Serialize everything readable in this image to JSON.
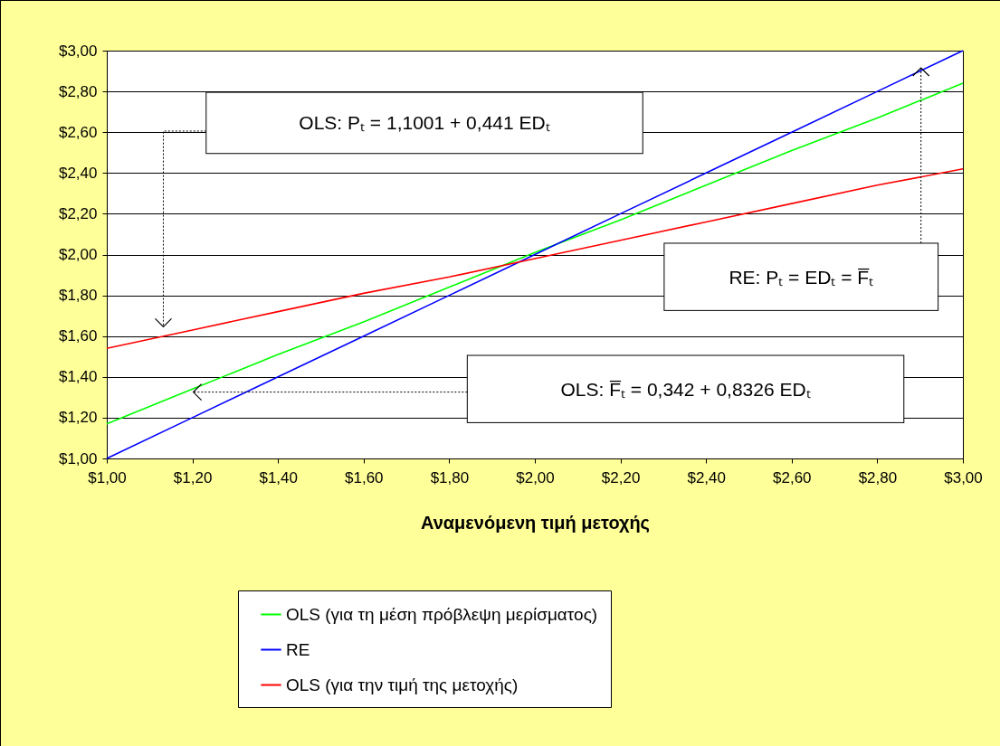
{
  "chart_data": {
    "type": "line",
    "xlabel": "Αναμενόμενη τιμή μετοχής",
    "x": [
      1.0,
      1.2,
      1.4,
      1.6,
      1.8,
      2.0,
      2.2,
      2.4,
      2.6,
      2.8,
      3.0
    ],
    "series": [
      {
        "name": "OLS (για τη μέση πρόβλεψη μερίσματος)",
        "color": "#00ff00",
        "values": [
          1.17,
          1.34,
          1.51,
          1.67,
          1.84,
          2.01,
          2.17,
          2.34,
          2.51,
          2.67,
          2.84
        ]
      },
      {
        "name": "RE",
        "color": "#0000ff",
        "values": [
          1.0,
          1.2,
          1.4,
          1.6,
          1.8,
          2.0,
          2.2,
          2.4,
          2.6,
          2.8,
          3.0
        ]
      },
      {
        "name": "OLS (για την τιμή της μετοχής)",
        "color": "#ff0000",
        "values": [
          1.54,
          1.63,
          1.72,
          1.81,
          1.89,
          1.98,
          2.07,
          2.16,
          2.25,
          2.34,
          2.42
        ]
      }
    ],
    "xlim": [
      1,
      3
    ],
    "ylim": [
      1,
      3
    ],
    "xticks": [
      {
        "value": 1,
        "label": "$1,00"
      },
      {
        "value": 1.2,
        "label": "$1,20"
      },
      {
        "value": 1.4,
        "label": "$1,40"
      },
      {
        "value": 1.6,
        "label": "$1,60"
      },
      {
        "value": 1.8,
        "label": "$1,80"
      },
      {
        "value": 2,
        "label": "$2,00"
      },
      {
        "value": 2.2,
        "label": "$2,20"
      },
      {
        "value": 2.4,
        "label": "$2,40"
      },
      {
        "value": 2.6,
        "label": "$2,60"
      },
      {
        "value": 2.8,
        "label": "$2,80"
      },
      {
        "value": 3,
        "label": "$3,00"
      }
    ],
    "yticks": [
      {
        "value": 1,
        "label": "$1,00"
      },
      {
        "value": 1.2,
        "label": "$1,20"
      },
      {
        "value": 1.4,
        "label": "$1,40"
      },
      {
        "value": 1.6,
        "label": "$1,60"
      },
      {
        "value": 1.8,
        "label": "$1,80"
      },
      {
        "value": 2,
        "label": "$2,00"
      },
      {
        "value": 2.2,
        "label": "$2,20"
      },
      {
        "value": 2.4,
        "label": "$2,40"
      },
      {
        "value": 2.6,
        "label": "$2,60"
      },
      {
        "value": 2.8,
        "label": "$2,80"
      },
      {
        "value": 3,
        "label": "$3,00"
      }
    ],
    "grid": "y",
    "legend": "bottom",
    "annotations": [
      "OLS:  Pₜ = 1,1001 + 0,441 EDₜ",
      "RE:  Pₜ = EDₜ = F̅ₜ",
      "OLS:  F̅ₜ  = 0,342 + 0,8326 EDₜ"
    ]
  }
}
